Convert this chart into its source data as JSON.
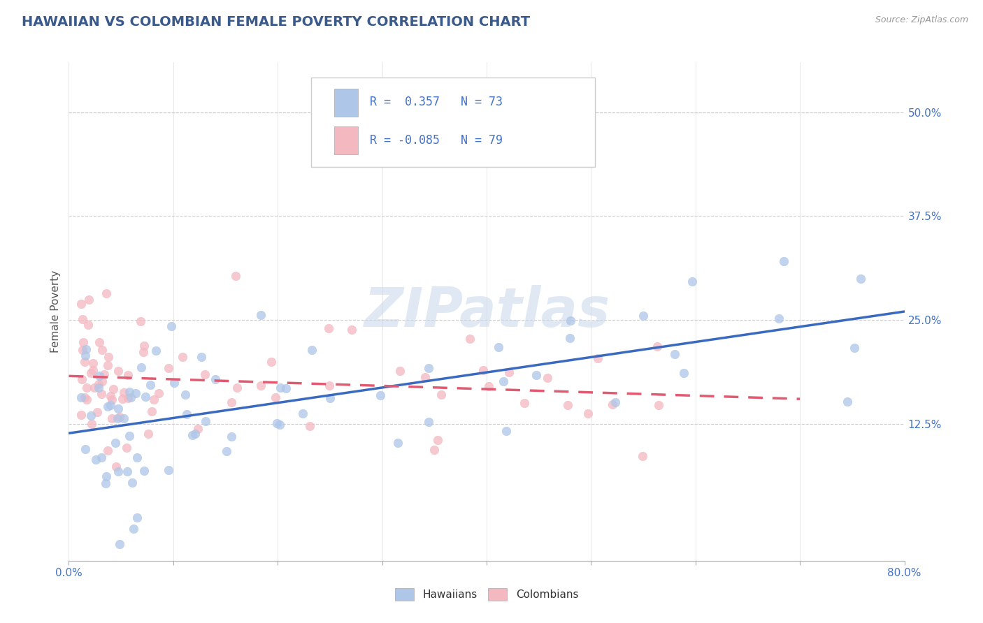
{
  "title": "HAWAIIAN VS COLOMBIAN FEMALE POVERTY CORRELATION CHART",
  "source_text": "Source: ZipAtlas.com",
  "ylabel": "Female Poverty",
  "xlim": [
    0.0,
    0.8
  ],
  "ylim": [
    -0.04,
    0.56
  ],
  "x_ticks": [
    0.0,
    0.1,
    0.2,
    0.3,
    0.4,
    0.5,
    0.6,
    0.7,
    0.8
  ],
  "y_ticks": [
    0.125,
    0.25,
    0.375,
    0.5
  ],
  "y_tick_labels": [
    "12.5%",
    "25.0%",
    "37.5%",
    "50.0%"
  ],
  "hawaiian_color": "#aec6e8",
  "colombian_color": "#f4b8c1",
  "hawaiian_line_color": "#3a6abf",
  "colombian_line_color": "#e05a72",
  "legend_R_hawaiian": "0.357",
  "legend_N_hawaiian": "73",
  "legend_R_colombian": "-0.085",
  "legend_N_colombian": "79",
  "watermark": "ZIPatlas",
  "title_color": "#3a5a8c",
  "tick_color": "#4472c4",
  "title_fontsize": 14,
  "label_fontsize": 11,
  "tick_fontsize": 11
}
